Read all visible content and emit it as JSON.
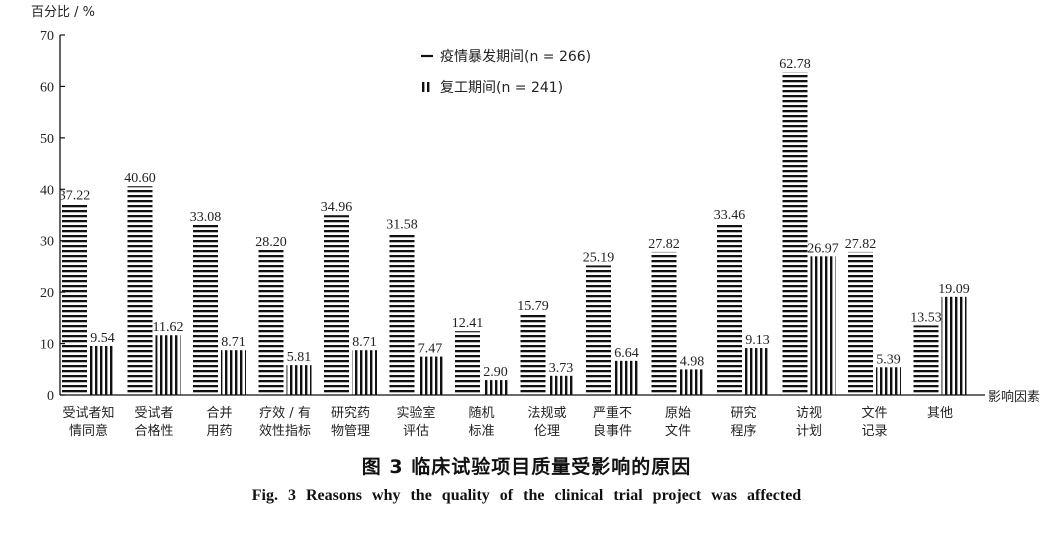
{
  "chart_data": {
    "type": "bar",
    "ylabel": "百分比 / %",
    "xlabel": "影响因素",
    "ylim": [
      0,
      70
    ],
    "yticks": [
      0,
      10,
      20,
      30,
      40,
      50,
      60,
      70
    ],
    "legend_position": "top-center",
    "categories": [
      [
        "受试者知",
        "情同意"
      ],
      [
        "受试者",
        "合格性"
      ],
      [
        "合并",
        "用药"
      ],
      [
        "疗效 / 有",
        "效性指标"
      ],
      [
        "研究药",
        "物管理"
      ],
      [
        "实验室",
        "评估"
      ],
      [
        "随机",
        "标准"
      ],
      [
        "法规或",
        "伦理"
      ],
      [
        "严重不",
        "良事件"
      ],
      [
        "原始",
        "文件"
      ],
      [
        "研究",
        "程序"
      ],
      [
        "访视",
        "计划"
      ],
      [
        "文件",
        "记录"
      ],
      [
        "其他"
      ]
    ],
    "series": [
      {
        "name": "疫情暴发期间(n = 266)",
        "pattern": "horizontal-stripes",
        "values": [
          37.22,
          40.6,
          33.08,
          28.2,
          34.96,
          31.58,
          12.41,
          15.79,
          25.19,
          27.82,
          33.46,
          62.78,
          27.82,
          13.53
        ],
        "labels": [
          "37.22",
          "40.60",
          "33.08",
          "28.20",
          "34.96",
          "31.58",
          "12.41",
          "15.79",
          "25.19",
          "27.82",
          "33.46",
          "62.78",
          "27.82",
          "13.53"
        ]
      },
      {
        "name": "复工期间(n = 241)",
        "pattern": "vertical-stripes",
        "values": [
          9.54,
          11.62,
          8.71,
          5.81,
          8.71,
          7.47,
          2.9,
          3.73,
          6.64,
          4.98,
          9.13,
          26.97,
          5.39,
          19.09
        ],
        "labels": [
          "9.54",
          "11.62",
          "8.71",
          "5.81",
          "8.71",
          "7.47",
          "2.90",
          "3.73",
          "6.64",
          "4.98",
          "9.13",
          "26.97",
          "5.39",
          "19.09"
        ]
      }
    ],
    "colors": {
      "bars": "#111111",
      "axis": "#111111"
    }
  },
  "caption": {
    "cn": "图 3    临床试验项目质量受影响的原因",
    "en": "Fig. 3   Reasons why the quality of the clinical trial project was affected"
  }
}
